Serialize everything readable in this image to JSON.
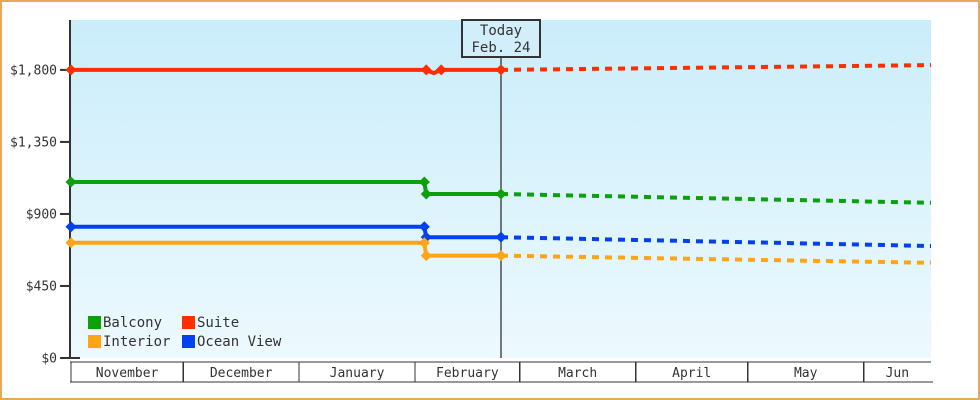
{
  "colors": {
    "frame_border": "#E9A75B",
    "plot_bg_top": "#CAEDFA",
    "plot_bg_bottom": "#EDF9FE",
    "axis": "#333333",
    "text": "#333333",
    "today_box_fill": "#D2EEFA",
    "today_line": "#333333"
  },
  "chart_data": {
    "type": "line",
    "title": "",
    "today": {
      "line1": "Today",
      "line2": "Feb. 24",
      "day": 115
    },
    "y_axis": {
      "max": 2112,
      "ticks": [
        {
          "label": "$0",
          "value": 0
        },
        {
          "label": "$450",
          "value": 450
        },
        {
          "label": "$900",
          "value": 900
        },
        {
          "label": "$1,350",
          "value": 1350
        },
        {
          "label": "$1,800",
          "value": 1800
        }
      ]
    },
    "x_axis": {
      "total_days": 230,
      "months": [
        {
          "label": "November",
          "start_day": 0
        },
        {
          "label": "December",
          "start_day": 30
        },
        {
          "label": "January",
          "start_day": 61
        },
        {
          "label": "February",
          "start_day": 92
        },
        {
          "label": "March",
          "start_day": 120
        },
        {
          "label": "April",
          "start_day": 151
        },
        {
          "label": "May",
          "start_day": 181
        },
        {
          "label": "Jun",
          "start_day": 212
        }
      ]
    },
    "series": [
      {
        "name": "Suite",
        "color": "#FF2D00",
        "solid": [
          [
            0,
            1800
          ],
          [
            95,
            1800
          ],
          [
            97,
            1780
          ],
          [
            99,
            1800
          ],
          [
            115,
            1800
          ]
        ],
        "markers": [
          [
            0,
            1800
          ],
          [
            95,
            1800
          ],
          [
            99,
            1800
          ],
          [
            115,
            1800
          ]
        ],
        "forecast": [
          [
            115,
            1800
          ],
          [
            230,
            1830
          ]
        ]
      },
      {
        "name": "Balcony",
        "color": "#0CA00C",
        "solid": [
          [
            0,
            1100
          ],
          [
            94.5,
            1100
          ],
          [
            95,
            1025
          ],
          [
            115,
            1025
          ]
        ],
        "markers": [
          [
            0,
            1100
          ],
          [
            94.5,
            1100
          ],
          [
            95,
            1025
          ],
          [
            115,
            1025
          ]
        ],
        "forecast": [
          [
            115,
            1025
          ],
          [
            230,
            970
          ]
        ]
      },
      {
        "name": "Ocean View",
        "color": "#0341F0",
        "solid": [
          [
            0,
            820
          ],
          [
            94.5,
            820
          ],
          [
            95,
            755
          ],
          [
            115,
            755
          ]
        ],
        "markers": [
          [
            0,
            820
          ],
          [
            94.5,
            820
          ],
          [
            95,
            755
          ],
          [
            115,
            755
          ]
        ],
        "forecast": [
          [
            115,
            755
          ],
          [
            230,
            700
          ]
        ]
      },
      {
        "name": "Interior",
        "color": "#FFA412",
        "solid": [
          [
            0,
            720
          ],
          [
            94.5,
            720
          ],
          [
            95,
            640
          ],
          [
            115,
            640
          ]
        ],
        "markers": [
          [
            0,
            720
          ],
          [
            94.5,
            720
          ],
          [
            95,
            640
          ],
          [
            115,
            640
          ]
        ],
        "forecast": [
          [
            115,
            640
          ],
          [
            230,
            595
          ]
        ]
      }
    ],
    "legend": {
      "items": [
        {
          "label": "Balcony",
          "color": "#0CA00C"
        },
        {
          "label": "Suite",
          "color": "#FF2D00"
        },
        {
          "label": "Interior",
          "color": "#FFA412"
        },
        {
          "label": "Ocean View",
          "color": "#0341F0"
        }
      ]
    }
  }
}
